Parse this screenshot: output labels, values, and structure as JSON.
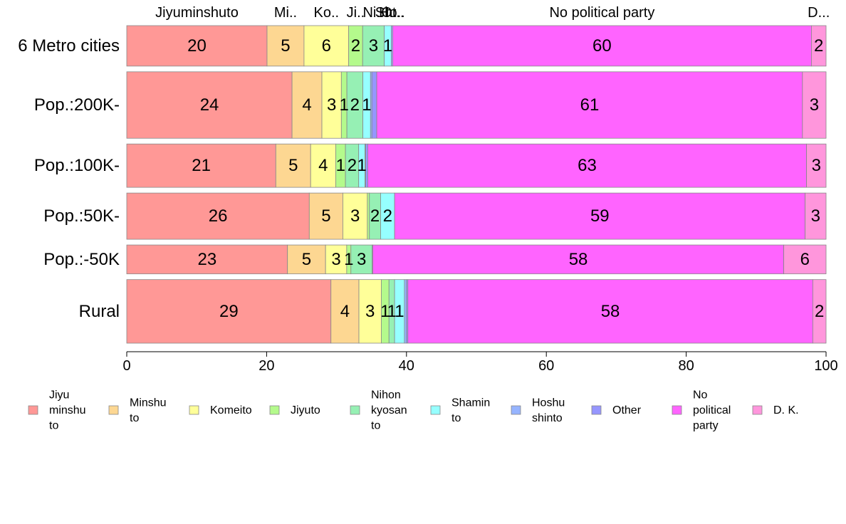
{
  "chart_data": {
    "type": "bar",
    "orientation": "horizontal",
    "stacked": true,
    "percent_scale": true,
    "xlim": [
      0,
      100
    ],
    "x_ticks": [
      "0",
      "20",
      "40",
      "60",
      "80",
      "100"
    ],
    "categories": [
      "6 Metro cities",
      "Pop.:200K-",
      "Pop.:100K-",
      "Pop.:50K-",
      "Pop.:-50K",
      "Rural"
    ],
    "category_shares": [
      0.14,
      0.23,
      0.15,
      0.16,
      0.1,
      0.22
    ],
    "top_segment_labels": [
      "Jiyuminshuto",
      "Mi..",
      "Ko..",
      "Ji..",
      "Ni..",
      "Sh..",
      "Ho..",
      "Ot..",
      "No political party",
      "D..."
    ],
    "series": [
      {
        "name": "Jiyu minshu to",
        "legend_lines": [
          "Jiyu",
          "minshu",
          "to"
        ],
        "color": "#FF9896",
        "values": [
          20.1,
          23.8,
          21.4,
          26.1,
          22.8,
          29.2
        ],
        "labels": [
          "20",
          "24",
          "21",
          "26",
          "23",
          "29"
        ]
      },
      {
        "name": "Minshu to",
        "legend_lines": [
          "Minshu",
          "to"
        ],
        "color": "#FDD792",
        "values": [
          5.3,
          4.3,
          5.0,
          4.8,
          5.4,
          4.0
        ],
        "labels": [
          "5",
          "4",
          "5",
          "5",
          "5",
          "4"
        ]
      },
      {
        "name": "Komeito",
        "legend_lines": [
          "Komeito"
        ],
        "color": "#FFFF99",
        "values": [
          6.4,
          2.8,
          3.6,
          3.5,
          3.0,
          3.2
        ],
        "labels": [
          "6",
          "3",
          "4",
          "3",
          "3",
          "3"
        ]
      },
      {
        "name": "Jiyuto",
        "legend_lines": [
          "Jiyuto"
        ],
        "color": "#B4FA8C",
        "values": [
          2.0,
          0.8,
          1.4,
          0.3,
          0.6,
          1.1
        ],
        "labels": [
          "2",
          "1",
          "1",
          "",
          "1",
          "1"
        ]
      },
      {
        "name": "Nihon kyosan to",
        "legend_lines": [
          "Nihon",
          "kyosan",
          "to"
        ],
        "color": "#96F0B4",
        "values": [
          3.1,
          2.3,
          1.9,
          1.6,
          3.0,
          0.8
        ],
        "labels": [
          "3",
          "2",
          "2",
          "2",
          "3",
          "1"
        ]
      },
      {
        "name": "Shamin to",
        "legend_lines": [
          "Shamin",
          "to"
        ],
        "color": "#96FFFF",
        "values": [
          1.0,
          1.1,
          0.9,
          2.0,
          0.1,
          1.4
        ],
        "labels": [
          "1",
          "1",
          "1",
          "2",
          "",
          "1"
        ]
      },
      {
        "name": "Hoshu shinto",
        "legend_lines": [
          "Hoshu",
          "shinto"
        ],
        "color": "#96B4FF",
        "values": [
          0.2,
          0.2,
          0.1,
          0.0,
          0.0,
          0.3
        ],
        "labels": [
          "",
          "",
          "",
          "",
          "",
          ""
        ]
      },
      {
        "name": "Other",
        "legend_lines": [
          "Other"
        ],
        "color": "#9696FF",
        "values": [
          0.0,
          0.7,
          0.3,
          0.0,
          0.0,
          0.2
        ],
        "labels": [
          "",
          "",
          "",
          "",
          "",
          ""
        ]
      },
      {
        "name": "No political party",
        "legend_lines": [
          "No",
          "political",
          "party"
        ],
        "color": "#FF64FF",
        "values": [
          60.0,
          61.3,
          63.0,
          58.7,
          58.3,
          57.9
        ],
        "labels": [
          "60",
          "61",
          "63",
          "59",
          "58",
          "58"
        ]
      },
      {
        "name": "D. K.",
        "legend_lines": [
          "D. K."
        ],
        "color": "#FF96DC",
        "values": [
          2.1,
          3.4,
          2.8,
          3.0,
          6.0,
          1.9
        ],
        "labels": [
          "2",
          "3",
          "3",
          "3",
          "6",
          "2"
        ]
      }
    ]
  }
}
